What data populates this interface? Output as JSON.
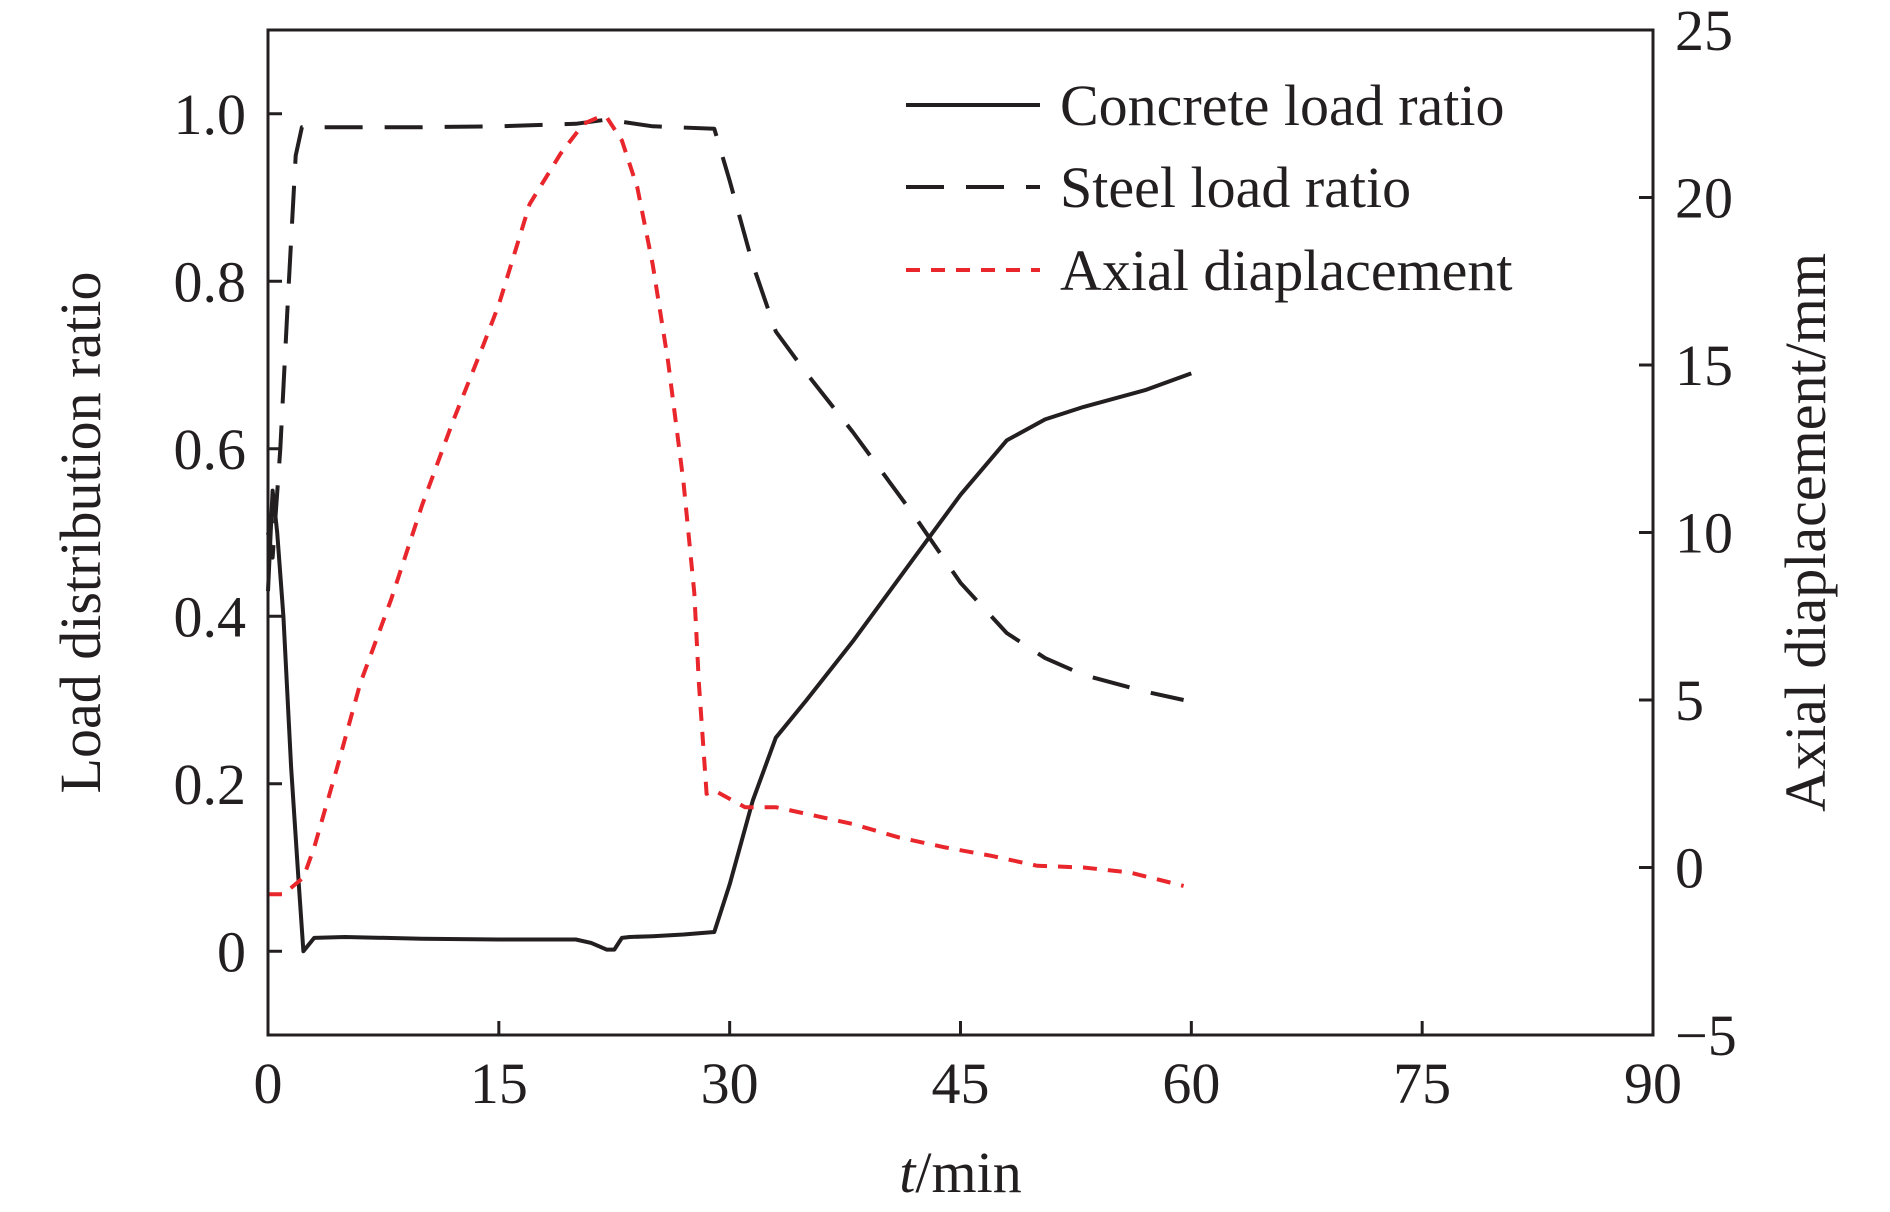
{
  "chart_data": {
    "type": "line",
    "title": "",
    "xlabel_italic": "t",
    "xlabel_rest": "/min",
    "ylabel_left": "Load distribution ratio",
    "ylabel_right": "Axial diaplacement/mm",
    "xlim": [
      0,
      90
    ],
    "ylim_left": [
      -0.1,
      1.1
    ],
    "ylim_right": [
      -5,
      25
    ],
    "x_ticks": [
      0,
      15,
      30,
      45,
      60,
      75,
      90
    ],
    "x_tick_labels": [
      "0",
      "15",
      "30",
      "45",
      "60",
      "75",
      "90"
    ],
    "y_left_ticks": [
      0,
      0.2,
      0.4,
      0.6,
      0.8,
      1.0
    ],
    "y_left_tick_labels": [
      "0",
      "0.2",
      "0.4",
      "0.6",
      "0.8",
      "1.0"
    ],
    "y_right_ticks": [
      -5,
      0,
      5,
      10,
      15,
      20,
      25
    ],
    "y_right_tick_labels": [
      "−5",
      "0",
      "5",
      "10",
      "15",
      "20",
      "25"
    ],
    "grid": false,
    "legend_position": "top-right",
    "series": [
      {
        "name": "Concrete load ratio",
        "axis": "left",
        "style": "solid",
        "color": "#231f20",
        "x": [
          0,
          0.3,
          0.6,
          1.0,
          1.5,
          2.0,
          2.3,
          3,
          5,
          10,
          15,
          20,
          21,
          22,
          22.5,
          23,
          23.5,
          25,
          27,
          29,
          30,
          31.5,
          33,
          35,
          38,
          42,
          45,
          48,
          50.5,
          53,
          57,
          60
        ],
        "y": [
          0.43,
          0.55,
          0.5,
          0.4,
          0.22,
          0.08,
          0.0,
          0.016,
          0.017,
          0.015,
          0.014,
          0.014,
          0.01,
          0.002,
          0.002,
          0.016,
          0.017,
          0.018,
          0.02,
          0.023,
          0.08,
          0.18,
          0.255,
          0.3,
          0.37,
          0.47,
          0.545,
          0.61,
          0.635,
          0.65,
          0.67,
          0.69
        ]
      },
      {
        "name": "Steel load ratio",
        "axis": "left",
        "style": "dashed",
        "color": "#231f20",
        "x": [
          0,
          0.3,
          0.8,
          1.3,
          1.8,
          2.2,
          5,
          10,
          15,
          20,
          22,
          25,
          29,
          30,
          31.5,
          33,
          35,
          38,
          42,
          45,
          48,
          50.5,
          53,
          57,
          59.5
        ],
        "y": [
          0.5,
          0.47,
          0.6,
          0.78,
          0.95,
          0.984,
          0.984,
          0.984,
          0.985,
          0.988,
          0.993,
          0.985,
          0.982,
          0.92,
          0.82,
          0.74,
          0.69,
          0.62,
          0.52,
          0.44,
          0.38,
          0.35,
          0.33,
          0.31,
          0.3
        ]
      },
      {
        "name": "Axial diaplacement",
        "axis": "right",
        "style": "short-dashed",
        "color": "#e8262b",
        "x": [
          0,
          1,
          2.3,
          3,
          4.5,
          6,
          8,
          10,
          12,
          14,
          15,
          17,
          19,
          20.5,
          21.5,
          22,
          23,
          24,
          25,
          26,
          27,
          27.7,
          28,
          28.5,
          29,
          31,
          33,
          35,
          38,
          41,
          44,
          47,
          50,
          53,
          56,
          59.5
        ],
        "y": [
          -0.8,
          -0.8,
          -0.3,
          0.6,
          3,
          5.5,
          8,
          10.8,
          13.3,
          15.6,
          16.8,
          19.8,
          21.3,
          22.2,
          22.4,
          22.4,
          21.7,
          20.3,
          18,
          15.1,
          11.5,
          8.2,
          5.5,
          2.2,
          2.3,
          1.8,
          1.8,
          1.6,
          1.3,
          0.9,
          0.6,
          0.35,
          0.05,
          0.0,
          -0.15,
          -0.55
        ]
      }
    ]
  }
}
